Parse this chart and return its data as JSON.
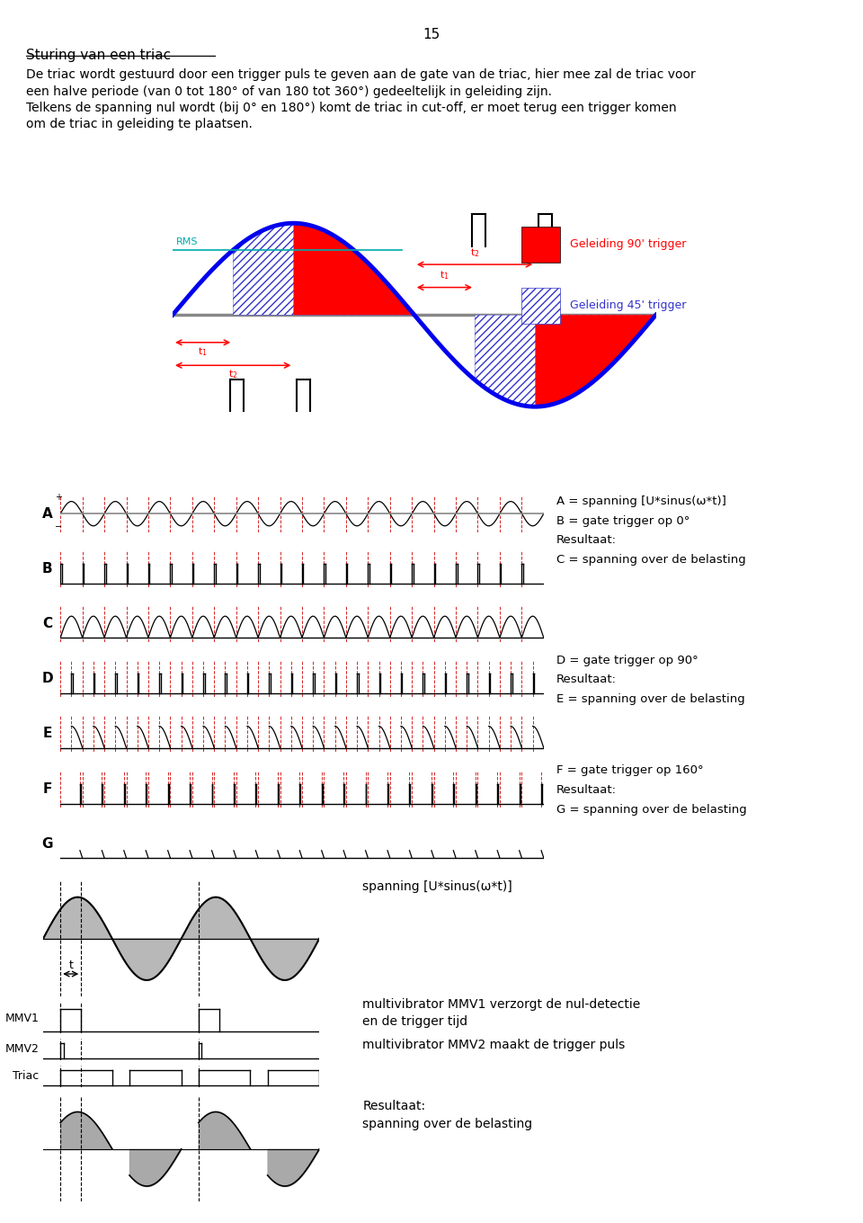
{
  "page_number": "15",
  "title": "Sturing van een triac",
  "body_lines": [
    "De triac wordt gestuurd door een trigger puls te geven aan de gate van de triac, hier mee zal de triac voor",
    "een halve periode (van 0 tot 180° of van 180 tot 360°) gedeeltelijk in geleiding zijn.",
    "Telkens de spanning nul wordt (bij 0° en 180°) komt de triac in cut-off, er moet terug een trigger komen",
    "om de triac in geleiding te plaatsen."
  ],
  "legend_red": "Geleiding 90' trigger",
  "legend_blue": "Geleiding 45' trigger",
  "fill_red_color": "#FF0000",
  "fill_blue_color": "#AAAAFF",
  "sine_color": "#0000EE",
  "rms_color": "#00AAAA",
  "axis_gray": "#888888",
  "red_dash_color": "#CC0000",
  "gray_fill": "#A0A0A0",
  "right_texts": [
    [
      "A = spanning [U*sinus(ω*t)]",
      "B = gate trigger op 0°",
      "Resultaat:",
      "C = spanning over de belasting"
    ],
    [
      "D = gate trigger op 90°",
      "Resultaat:",
      "E = spanning over de belasting"
    ],
    [
      "F = gate trigger op 160°",
      "Resultaat:",
      "G = spanning over de belasting"
    ]
  ],
  "bottom_label_sine": "spanning [U*sinus(ω*t)]",
  "bottom_label_mmv1a": "multivibrator MMV1 verzorgt de nul-detectie",
  "bottom_label_mmv1b": "en de trigger tijd",
  "bottom_label_mmv2": "multivibrator MMV2 maakt de trigger puls",
  "bottom_label_result": "Resultaat:",
  "bottom_label_load": "spanning over de belasting",
  "mmv1_label": "MMV1",
  "mmv2_label": "MMV2",
  "triac_label": "Triac"
}
